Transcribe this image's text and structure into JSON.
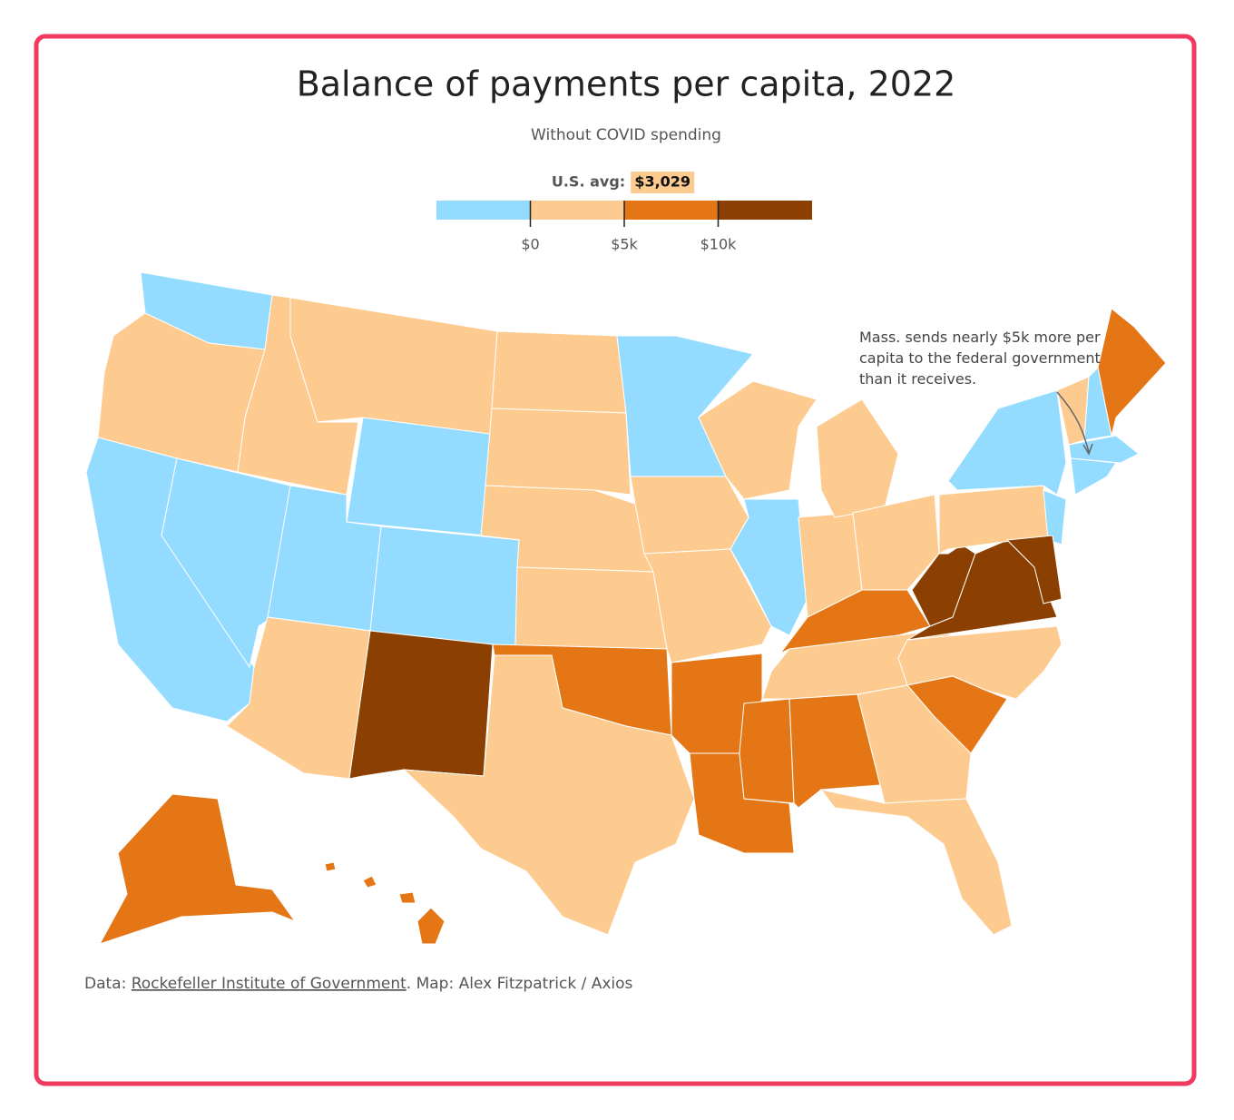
{
  "chart_data": {
    "type": "choropleth",
    "title": "Balance of payments per capita, 2022",
    "subtitle": "Without COVID spending",
    "legend": {
      "average": {
        "label": "U.S. avg:",
        "value": 3029,
        "value_label": "$3,029"
      },
      "bins": [
        -5000,
        0,
        5000,
        10000,
        15000
      ],
      "colors": [
        "#94dcff",
        "#fdcb8f",
        "#e47616",
        "#8b3f00"
      ],
      "xlim": [
        -5000,
        15000
      ],
      "xticks": [
        {
          "value": 0,
          "label": "$0"
        },
        {
          "value": 5000,
          "label": "$5k"
        },
        {
          "value": 10000,
          "label": "$10k"
        }
      ]
    },
    "annotation": [
      "Mass. sends nearly $5k more per",
      "capita to the federal government",
      "than it receives."
    ],
    "source": {
      "prefix": "Data: ",
      "link": "Rockefeller Institute of Government",
      "suffix": ". Map: Alex Fitzpatrick / Axios"
    }
  }
}
